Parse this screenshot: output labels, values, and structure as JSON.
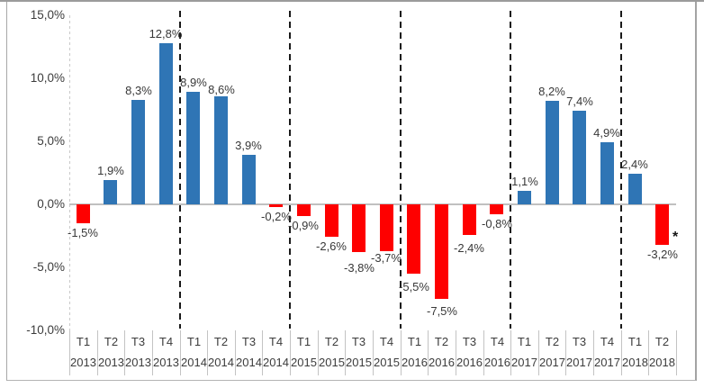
{
  "chart": {
    "background": "#ffffff",
    "frame_border_color": "#a8a8a8",
    "axis_line_color": "#c9c9c9",
    "zero_line_color": "#c0c0c0",
    "year_separator_color": "#1a1a1a",
    "text_color": "#3c3c3c"
  },
  "chart_data": {
    "type": "bar",
    "title": "",
    "xlabel": "",
    "ylabel": "",
    "ylim": [
      -10,
      15
    ],
    "grid": false,
    "legend": false,
    "number_format": "comma-decimal-percent",
    "positive_color": "#2f75b5",
    "negative_color": "#fe0000",
    "yticks": [
      {
        "value": 15,
        "label": "15,0%"
      },
      {
        "value": 10,
        "label": "10,0%"
      },
      {
        "value": 5,
        "label": "5,0%"
      },
      {
        "value": 0,
        "label": "0,0%"
      },
      {
        "value": -5,
        "label": "-5,0%"
      },
      {
        "value": -10,
        "label": "-10,0%"
      }
    ],
    "points": [
      {
        "quarter": "T1",
        "year": "2013",
        "value": -1.5,
        "label": "-1,5%"
      },
      {
        "quarter": "T2",
        "year": "2013",
        "value": 1.9,
        "label": "1,9%"
      },
      {
        "quarter": "T3",
        "year": "2013",
        "value": 8.3,
        "label": "8,3%"
      },
      {
        "quarter": "T4",
        "year": "2013",
        "value": 12.8,
        "label": "12,8%"
      },
      {
        "quarter": "T1",
        "year": "2014",
        "value": 8.9,
        "label": "8,9%"
      },
      {
        "quarter": "T2",
        "year": "2014",
        "value": 8.6,
        "label": "8,6%",
        "label_dy": 3
      },
      {
        "quarter": "T3",
        "year": "2014",
        "value": 3.9,
        "label": "3,9%"
      },
      {
        "quarter": "T4",
        "year": "2014",
        "value": -0.2,
        "label": "-0,2%"
      },
      {
        "quarter": "T1",
        "year": "2015",
        "value": -0.9,
        "label": "-0,9%"
      },
      {
        "quarter": "T2",
        "year": "2015",
        "value": -2.6,
        "label": "-2,6%"
      },
      {
        "quarter": "T3",
        "year": "2015",
        "value": -3.8,
        "label": "-3,8%",
        "label_dy": 7
      },
      {
        "quarter": "T4",
        "year": "2015",
        "value": -3.7,
        "label": "-3,7%",
        "label_dy": -3
      },
      {
        "quarter": "T1",
        "year": "2016",
        "value": -5.5,
        "label": "-5,5%",
        "label_dy": 4
      },
      {
        "quarter": "T2",
        "year": "2016",
        "value": -7.5,
        "label": "-7,5%",
        "label_dy": 3
      },
      {
        "quarter": "T3",
        "year": "2016",
        "value": -2.4,
        "label": "-2,4%",
        "label_dy": 4
      },
      {
        "quarter": "T4",
        "year": "2016",
        "value": -0.8,
        "label": "-0,8%"
      },
      {
        "quarter": "T1",
        "year": "2017",
        "value": 1.1,
        "label": "1,1%"
      },
      {
        "quarter": "T2",
        "year": "2017",
        "value": 8.2,
        "label": "8,2%"
      },
      {
        "quarter": "T3",
        "year": "2017",
        "value": 7.4,
        "label": "7,4%"
      },
      {
        "quarter": "T4",
        "year": "2017",
        "value": 4.9,
        "label": "4,9%"
      },
      {
        "quarter": "T1",
        "year": "2018",
        "value": 2.4,
        "label": "2,4%"
      },
      {
        "quarter": "T2",
        "year": "2018",
        "value": -3.2,
        "label": "-3,2%",
        "annotation": "*"
      }
    ],
    "year_separator_after_indices": [
      3,
      7,
      11,
      15,
      19
    ]
  }
}
